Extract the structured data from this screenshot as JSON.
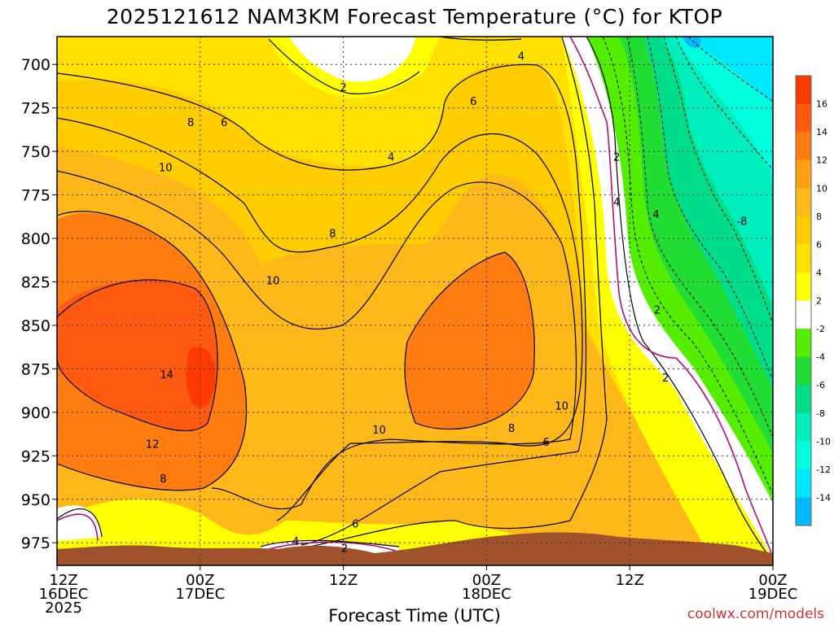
{
  "chart_data": {
    "type": "heatmap",
    "title": "2025121612 NAM3KM Forecast Temperature (°C) for KTOP",
    "xlabel": "Forecast Time (UTC)",
    "ylabel": "",
    "credit": "coolwx.com/models",
    "x_ticks": [
      {
        "hour": 0,
        "lines": [
          "12Z",
          "16DEC",
          "2025"
        ]
      },
      {
        "hour": 12,
        "lines": [
          "00Z",
          "17DEC"
        ]
      },
      {
        "hour": 24,
        "lines": [
          "12Z"
        ]
      },
      {
        "hour": 36,
        "lines": [
          "00Z",
          "18DEC"
        ]
      },
      {
        "hour": 48,
        "lines": [
          "12Z"
        ]
      },
      {
        "hour": 60,
        "lines": [
          "00Z",
          "19DEC"
        ]
      }
    ],
    "xlim": [
      0,
      60
    ],
    "y_ticks": [
      700,
      725,
      750,
      775,
      800,
      825,
      850,
      875,
      900,
      925,
      950,
      975
    ],
    "ylim": [
      684,
      988
    ],
    "colorbar": {
      "bins": [
        {
          "lo": 16,
          "hi": 18,
          "color": "#ff3a00"
        },
        {
          "lo": 14,
          "hi": 16,
          "color": "#ff5a12"
        },
        {
          "lo": 12,
          "hi": 14,
          "color": "#ff7d10"
        },
        {
          "lo": 10,
          "hi": 12,
          "color": "#ff9f14"
        },
        {
          "lo": 8,
          "hi": 10,
          "color": "#ffb81a"
        },
        {
          "lo": 6,
          "hi": 8,
          "color": "#ffcc00"
        },
        {
          "lo": 4,
          "hi": 6,
          "color": "#ffe000"
        },
        {
          "lo": 2,
          "hi": 4,
          "color": "#ffff00"
        },
        {
          "lo": -2,
          "hi": 2,
          "color": "#ffffff"
        },
        {
          "lo": -4,
          "hi": -2,
          "color": "#55ee00"
        },
        {
          "lo": -6,
          "hi": -4,
          "color": "#22dd33"
        },
        {
          "lo": -8,
          "hi": -6,
          "color": "#00dd88"
        },
        {
          "lo": -10,
          "hi": -8,
          "color": "#00eebb"
        },
        {
          "lo": -12,
          "hi": -10,
          "color": "#00ffdd"
        },
        {
          "lo": -14,
          "hi": -12,
          "color": "#00e8ff"
        },
        {
          "lo": -16,
          "hi": -14,
          "color": "#00b8ff"
        }
      ],
      "labels": [
        "16",
        "14",
        "12",
        "10",
        "8",
        "6",
        "4",
        "2",
        "-2",
        "-4",
        "-6",
        "-8",
        "-10",
        "-12",
        "-14"
      ]
    },
    "terrain_color": "#a0522d",
    "series": [
      {
        "name": "Temperature (°C) at 700 hPa",
        "values": [
          7,
          6,
          5,
          4,
          3,
          2,
          2,
          3,
          5,
          4,
          3,
          2,
          1,
          -1,
          -6,
          -10,
          -13
        ]
      },
      {
        "name": "Temperature (°C) at 750 hPa",
        "values": [
          9,
          9,
          8,
          7,
          6,
          5,
          4,
          4,
          5,
          6,
          5,
          3,
          1,
          -3,
          -7,
          -9,
          -10
        ]
      },
      {
        "name": "Temperature (°C) at 800 hPa",
        "values": [
          12,
          11,
          10,
          9,
          8,
          8,
          8,
          8,
          9,
          10,
          9,
          4,
          2,
          -4,
          -6,
          -8,
          -9
        ]
      },
      {
        "name": "Temperature (°C) at 850 hPa",
        "values": [
          14,
          14,
          15,
          13,
          11,
          10,
          10,
          11,
          12,
          13,
          11,
          7,
          2,
          -1,
          -4,
          -5,
          -6
        ]
      },
      {
        "name": "Temperature (°C) at 900 hPa",
        "values": [
          13,
          14,
          15,
          13,
          11,
          10,
          9,
          9,
          11,
          12,
          9,
          5,
          3,
          2,
          0,
          -2,
          -4
        ]
      },
      {
        "name": "Temperature (°C) at 950 hPa",
        "values": [
          4,
          6,
          7,
          8,
          7,
          5,
          4,
          6,
          7,
          6,
          5,
          4,
          4,
          5,
          3,
          1,
          -1
        ]
      }
    ],
    "series_hours": [
      0,
      3.75,
      7.5,
      11.25,
      15,
      18.75,
      22.5,
      26.25,
      30,
      33.75,
      37.5,
      41.25,
      45,
      48.75,
      52.5,
      56.25,
      60
    ],
    "contour_labels": [
      {
        "text": "4",
        "hour": 38.9,
        "p": 695
      },
      {
        "text": "2",
        "hour": 24.0,
        "p": 713
      },
      {
        "text": "6",
        "hour": 34.9,
        "p": 721
      },
      {
        "text": "8",
        "hour": 11.2,
        "p": 733
      },
      {
        "text": "6",
        "hour": 14.0,
        "p": 733
      },
      {
        "text": "4",
        "hour": 28.0,
        "p": 753
      },
      {
        "text": "2",
        "hour": 46.9,
        "p": 753
      },
      {
        "text": "10",
        "hour": 9.1,
        "p": 759
      },
      {
        "text": "4",
        "hour": 46.9,
        "p": 779
      },
      {
        "text": "4",
        "hour": 50.2,
        "p": 786
      },
      {
        "text": "-8",
        "hour": 57.4,
        "p": 790
      },
      {
        "text": "8",
        "hour": 23.1,
        "p": 797
      },
      {
        "text": "10",
        "hour": 18.1,
        "p": 824
      },
      {
        "text": "2",
        "hour": 50.3,
        "p": 841
      },
      {
        "text": "14",
        "hour": 9.2,
        "p": 878
      },
      {
        "text": "2",
        "hour": 51.0,
        "p": 880
      },
      {
        "text": "10",
        "hour": 42.3,
        "p": 896
      },
      {
        "text": "10",
        "hour": 27.0,
        "p": 910
      },
      {
        "text": "8",
        "hour": 38.1,
        "p": 909
      },
      {
        "text": "6",
        "hour": 41.0,
        "p": 917
      },
      {
        "text": "12",
        "hour": 8.0,
        "p": 918
      },
      {
        "text": "8",
        "hour": 8.9,
        "p": 938
      },
      {
        "text": "6",
        "hour": 25.0,
        "p": 964
      },
      {
        "text": "4",
        "hour": 20.0,
        "p": 974
      },
      {
        "text": "2",
        "hour": 24.1,
        "p": 978
      }
    ]
  }
}
